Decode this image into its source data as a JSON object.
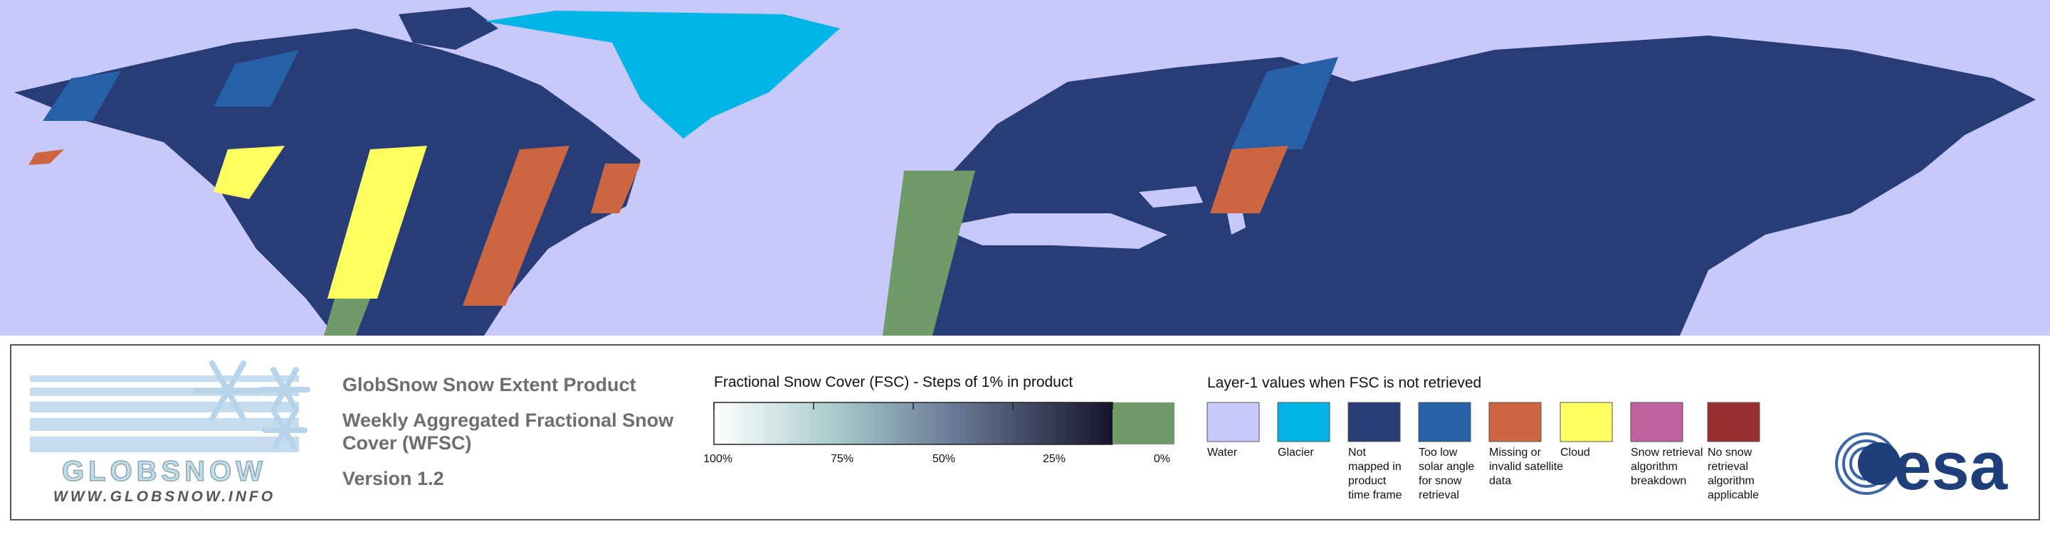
{
  "logo": {
    "wordmark": "GLOBSNOW",
    "url": "WWW.GLOBSNOW.INFO"
  },
  "product": {
    "title": "GlobSnow Snow Extent Product",
    "subtitle_lines": [
      "Weekly Aggregated Fractional Snow",
      "Cover (WFSC)"
    ],
    "version": "Version 1.2"
  },
  "fsc_scale": {
    "title": "Fractional Snow Cover (FSC) - Steps of 1% in product",
    "tick_labels": [
      "100%",
      "75%",
      "50%",
      "25%",
      "0%"
    ]
  },
  "layer1": {
    "title": "Layer-1 values when FSC is not retrieved",
    "classes": [
      {
        "label": [
          "Water"
        ],
        "color": "#c8c8fa"
      },
      {
        "label": [
          "Glacier"
        ],
        "color": "#00b4e6"
      },
      {
        "label": [
          "Not",
          "mapped in",
          "product",
          "time frame"
        ],
        "color": "#283c78"
      },
      {
        "label": [
          "Too low",
          "solar angle",
          "for snow",
          "retrieval"
        ],
        "color": "#2860a8"
      },
      {
        "label": [
          "Missing or",
          "invalid satellite",
          "data"
        ],
        "color": "#cc6640"
      },
      {
        "label": [
          "Cloud"
        ],
        "color": "#ffff60"
      },
      {
        "label": [
          "Snow retrieval",
          "algorithm",
          "breakdown"
        ],
        "color": "#c0609c"
      },
      {
        "label": [
          "No snow",
          "retrieval",
          "algorithm",
          "applicable"
        ],
        "color": "#983030"
      }
    ]
  },
  "esa": "esa"
}
